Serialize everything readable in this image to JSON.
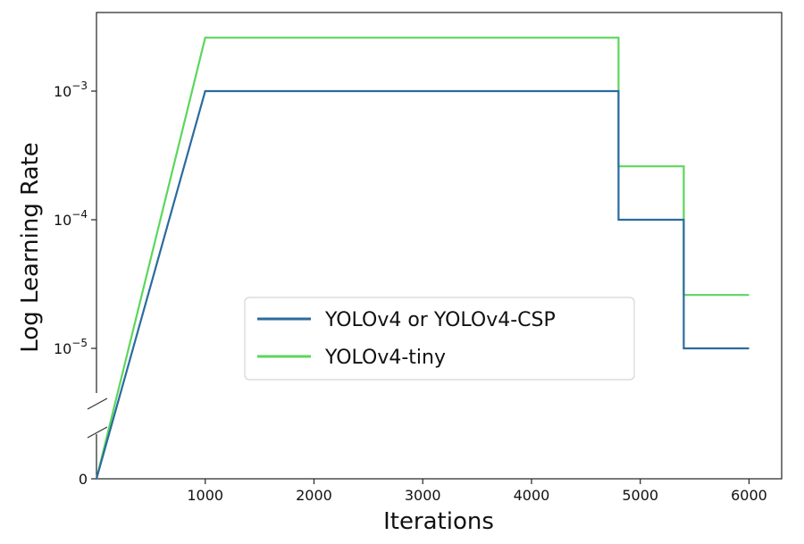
{
  "chart_data": {
    "type": "line",
    "title": "",
    "xlabel": "Iterations",
    "ylabel": "Log Learning Rate",
    "xlim": [
      0,
      6300
    ],
    "x_ticks": [
      1000,
      2000,
      3000,
      4000,
      5000,
      6000
    ],
    "x_tick_labels": [
      "1000",
      "2000",
      "3000",
      "4000",
      "5000",
      "6000"
    ],
    "y_scale": "log with broken axis (0 at bottom)",
    "y_ticks": [
      {
        "value": 0.001,
        "base": "10",
        "exp": "−3"
      },
      {
        "value": 0.0001,
        "base": "10",
        "exp": "−4"
      },
      {
        "value": 1e-05,
        "base": "10",
        "exp": "−5"
      },
      {
        "value": 0,
        "base": "0",
        "exp": ""
      }
    ],
    "grid": false,
    "legend_position": "center-right",
    "series": [
      {
        "name": "YOLOv4 or YOLOv4-CSP",
        "color": "#2a6b9e",
        "points": [
          [
            0,
            0
          ],
          [
            1000,
            0.001
          ],
          [
            4800,
            0.001
          ],
          [
            4800,
            0.0001
          ],
          [
            5400,
            0.0001
          ],
          [
            5400,
            1e-05
          ],
          [
            6000,
            1e-05
          ]
        ]
      },
      {
        "name": "YOLOv4-tiny",
        "color": "#5cd65c",
        "points": [
          [
            0,
            0
          ],
          [
            1000,
            0.0026
          ],
          [
            4800,
            0.0026
          ],
          [
            4800,
            0.00026
          ],
          [
            5400,
            0.00026
          ],
          [
            5400,
            2.6e-05
          ],
          [
            6000,
            2.6e-05
          ]
        ]
      }
    ]
  }
}
